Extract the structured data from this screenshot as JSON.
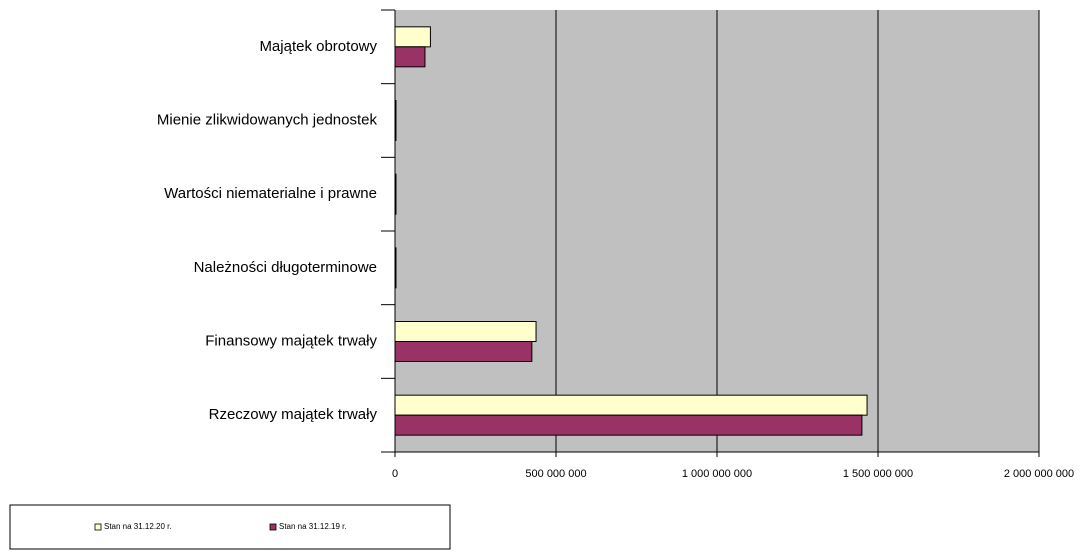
{
  "chart_data": {
    "type": "hbar",
    "categories": [
      "Majątek obrotowy",
      "Mienie zlikwidowanych jednostek",
      "Wartości niematerialne i prawne",
      "Należności długoterminowe",
      "Finansowy majątek trwały",
      "Rzeczowy majątek trwały"
    ],
    "series": [
      {
        "name": "Stan na 31.12.20 r.",
        "color": "#ffffcc",
        "values": [
          110000000,
          3000000,
          3000000,
          3000000,
          438000000,
          1466000000
        ]
      },
      {
        "name": "Stan na 31.12.19 r.",
        "color": "#993366",
        "values": [
          93000000,
          3000000,
          3000000,
          3000000,
          425000000,
          1450000000
        ]
      }
    ],
    "xlim": [
      0,
      2000000000
    ],
    "xticks": [
      0,
      {
        "value": 500000000,
        "label": "500 000 000"
      },
      {
        "value": 1000000000,
        "label": "1 000 000 000"
      },
      {
        "value": 1500000000,
        "label": "1 500 000 000"
      },
      {
        "value": 2000000000,
        "label": "2 000 000 000"
      }
    ],
    "grid": true,
    "plot_background": "#c0c0c0",
    "legend": "bottom-left"
  }
}
